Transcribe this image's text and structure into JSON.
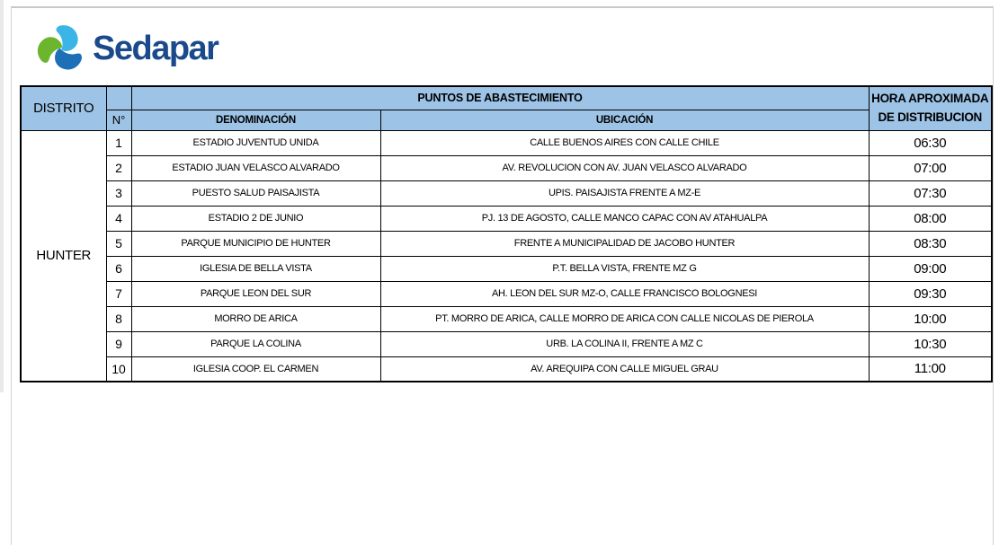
{
  "logo": {
    "text": "Sedapar",
    "icon": "sedapar-triskelion-droplets"
  },
  "colors": {
    "header_bg": "#9DC3E6",
    "table_border": "#000000",
    "logo_text": "#1A4A8C",
    "logo_cyan": "#3AB5E6",
    "logo_green": "#6CB52E",
    "logo_blue": "#1D70B7",
    "page_border": "#C9C9C9"
  },
  "table": {
    "header": {
      "distrito": "DISTRITO",
      "numero": "N°",
      "puntos": "PUNTOS DE ABASTECIMIENTO",
      "denominacion": "DENOMINACIÓN",
      "ubicacion": "UBICACIÓN",
      "hora_line1": "HORA APROXIMADA",
      "hora_line2": "DE DISTRIBUCION"
    },
    "district": "HUNTER",
    "rows": [
      {
        "n": "1",
        "denominacion": "ESTADIO JUVENTUD UNIDA",
        "ubicacion": "CALLE BUENOS AIRES CON CALLE CHILE",
        "hora": "06:30"
      },
      {
        "n": "2",
        "denominacion": "ESTADIO JUAN VELASCO ALVARADO",
        "ubicacion": "AV. REVOLUCION CON AV. JUAN VELASCO ALVARADO",
        "hora": "07:00"
      },
      {
        "n": "3",
        "denominacion": "PUESTO SALUD PAISAJISTA",
        "ubicacion": "UPIS. PAISAJISTA FRENTE A MZ-E",
        "hora": "07:30"
      },
      {
        "n": "4",
        "denominacion": "ESTADIO 2 DE JUNIO",
        "ubicacion": "PJ. 13 DE AGOSTO, CALLE MANCO CAPAC CON AV ATAHUALPA",
        "hora": "08:00"
      },
      {
        "n": "5",
        "denominacion": "PARQUE MUNICIPIO DE HUNTER",
        "ubicacion": "FRENTE A MUNICIPALIDAD DE JACOBO HUNTER",
        "hora": "08:30"
      },
      {
        "n": "6",
        "denominacion": "IGLESIA DE BELLA VISTA",
        "ubicacion": "P.T. BELLA VISTA, FRENTE MZ G",
        "hora": "09:00"
      },
      {
        "n": "7",
        "denominacion": "PARQUE LEON DEL SUR",
        "ubicacion": "AH. LEON DEL SUR MZ-O, CALLE FRANCISCO BOLOGNESI",
        "hora": "09:30"
      },
      {
        "n": "8",
        "denominacion": "MORRO DE ARICA",
        "ubicacion": "PT. MORRO DE ARICA, CALLE MORRO DE ARICA CON CALLE NICOLAS DE PIEROLA",
        "hora": "10:00"
      },
      {
        "n": "9",
        "denominacion": "PARQUE LA COLINA",
        "ubicacion": "URB. LA COLINA II, FRENTE A MZ C",
        "hora": "10:30"
      },
      {
        "n": "10",
        "denominacion": "IGLESIA COOP. EL CARMEN",
        "ubicacion": "AV. AREQUIPA CON CALLE MIGUEL GRAU",
        "hora": "11:00"
      }
    ]
  }
}
